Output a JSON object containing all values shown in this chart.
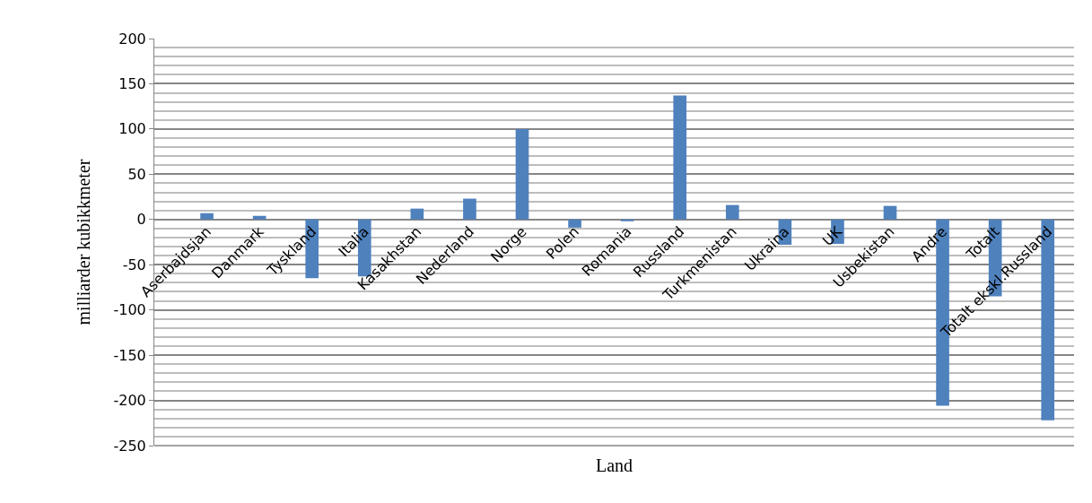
{
  "chart_data": {
    "type": "bar",
    "xlabel": "Land",
    "ylabel": "milliarder kubikkmeter",
    "categories": [
      "Aserbajdsjan",
      "Danmark",
      "Tyskland",
      "Italia",
      "Kasakhstan",
      "Nederland",
      "Norge",
      "Polen",
      "Romania",
      "Russland",
      "Turkmenistan",
      "Ukraina",
      "UK",
      "Usbekistan",
      "Andre",
      "Totalt",
      "Totalt ekskl.Russland"
    ],
    "values": [
      7,
      4,
      -65,
      -63,
      12,
      23,
      100,
      -9,
      -2,
      137,
      16,
      -28,
      -27,
      15,
      -206,
      -85,
      -222
    ],
    "color": "#4f81bd",
    "ylim": [
      -250,
      200
    ],
    "yticks": [
      -250,
      -200,
      -150,
      -100,
      -50,
      0,
      50,
      100,
      150,
      200
    ],
    "grid": "y"
  }
}
